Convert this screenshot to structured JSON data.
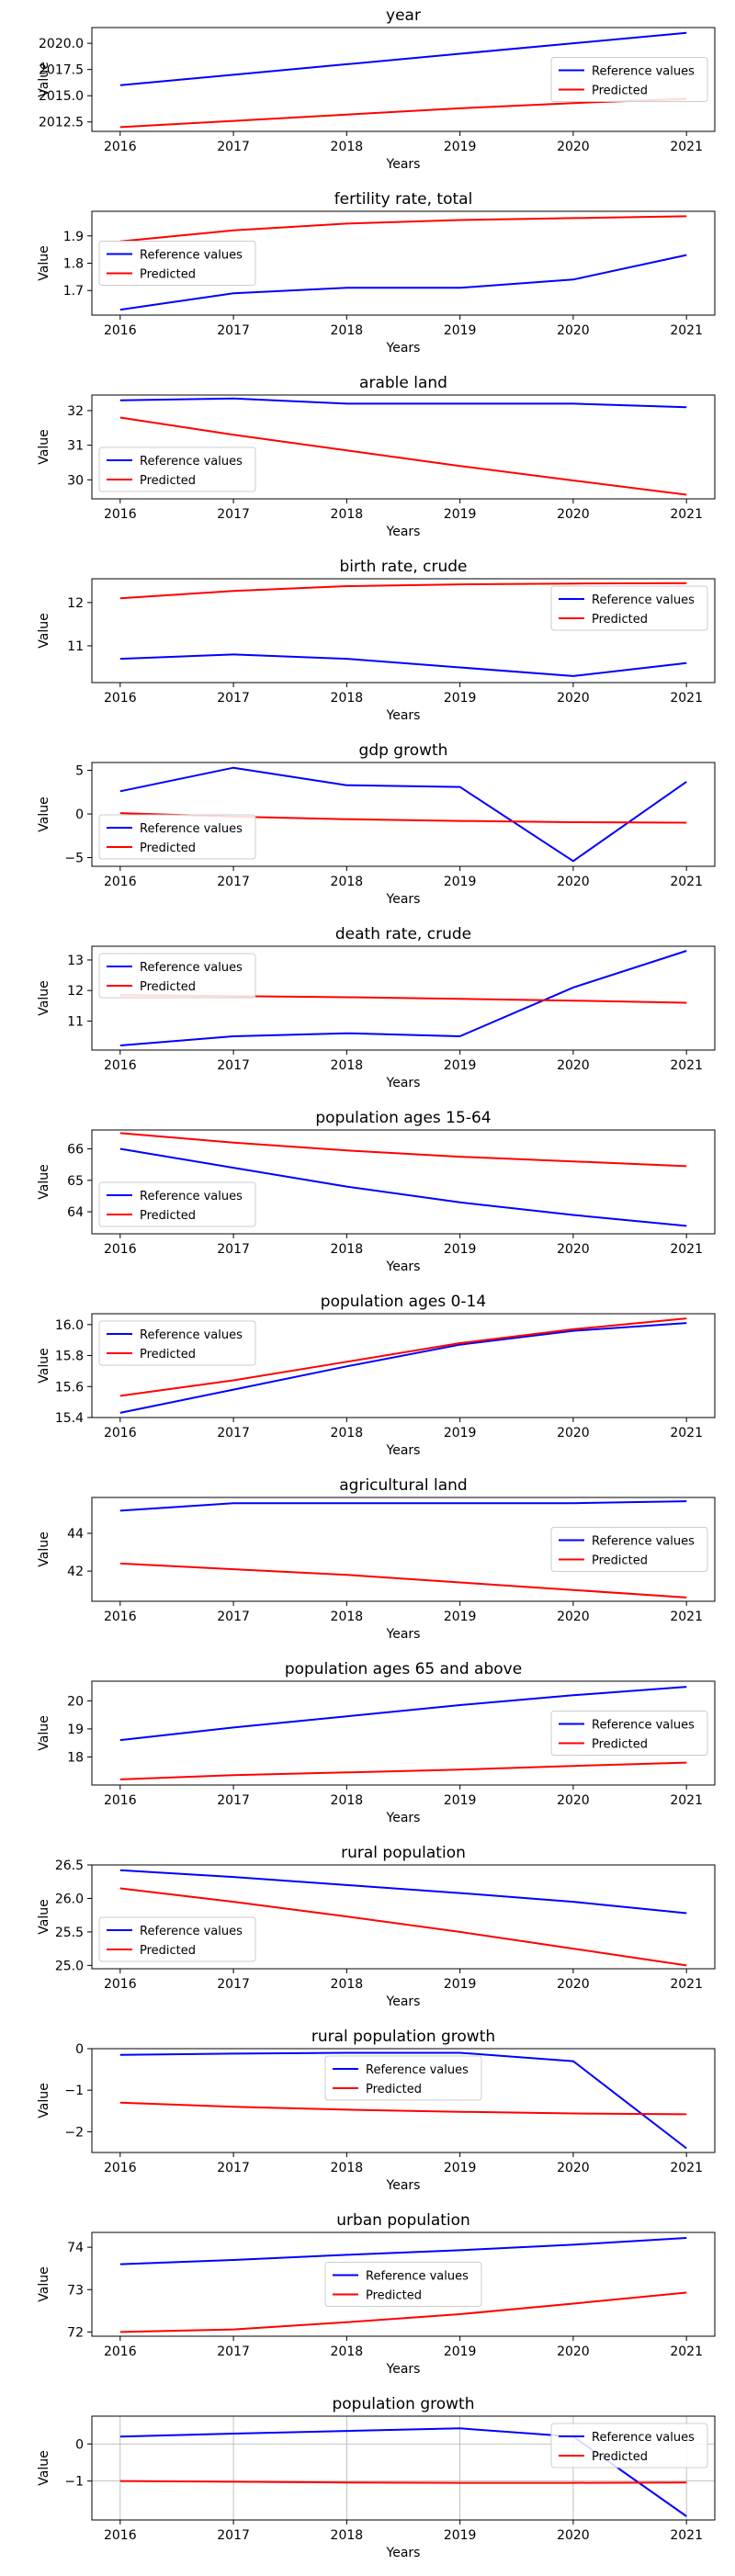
{
  "chart_data": [
    {
      "type": "line",
      "title": "year",
      "xlabel": "Years",
      "ylabel": "Value",
      "x": [
        2016,
        2017,
        2018,
        2019,
        2020,
        2021
      ],
      "xticks": [
        "2016",
        "2017",
        "2018",
        "2019",
        "2020",
        "2021"
      ],
      "ylim": [
        2011.6,
        2021.5
      ],
      "yticks": [
        2012.5,
        2015.0,
        2017.5,
        2020.0
      ],
      "ytick_labels": [
        "2012.5",
        "2015.0",
        "2017.5",
        "2020.0"
      ],
      "legend": "center-right",
      "grid": false,
      "series": [
        {
          "name": "Reference values",
          "color": "#0000ff",
          "values": [
            2016,
            2017,
            2018,
            2019,
            2020,
            2021
          ]
        },
        {
          "name": "Predicted",
          "color": "#ff0000",
          "values": [
            2012.0,
            2012.6,
            2013.2,
            2013.8,
            2014.3,
            2014.7
          ]
        }
      ]
    },
    {
      "type": "line",
      "title": "fertility rate, total",
      "xlabel": "Years",
      "ylabel": "Value",
      "x": [
        2016,
        2017,
        2018,
        2019,
        2020,
        2021
      ],
      "xticks": [
        "2016",
        "2017",
        "2018",
        "2019",
        "2020",
        "2021"
      ],
      "ylim": [
        1.61,
        1.99
      ],
      "yticks": [
        1.7,
        1.8,
        1.9
      ],
      "ytick_labels": [
        "1.7",
        "1.8",
        "1.9"
      ],
      "legend": "center-left",
      "grid": false,
      "series": [
        {
          "name": "Reference values",
          "color": "#0000ff",
          "values": [
            1.63,
            1.69,
            1.71,
            1.71,
            1.74,
            1.83
          ]
        },
        {
          "name": "Predicted",
          "color": "#ff0000",
          "values": [
            1.88,
            1.92,
            1.945,
            1.958,
            1.965,
            1.972
          ]
        }
      ]
    },
    {
      "type": "line",
      "title": "arable land",
      "xlabel": "Years",
      "ylabel": "Value",
      "x": [
        2016,
        2017,
        2018,
        2019,
        2020,
        2021
      ],
      "xticks": [
        "2016",
        "2017",
        "2018",
        "2019",
        "2020",
        "2021"
      ],
      "ylim": [
        29.45,
        32.45
      ],
      "yticks": [
        30,
        31,
        32
      ],
      "ytick_labels": [
        "30",
        "31",
        "32"
      ],
      "legend": "lower-left",
      "grid": false,
      "series": [
        {
          "name": "Reference values",
          "color": "#0000ff",
          "values": [
            32.3,
            32.35,
            32.2,
            32.2,
            32.2,
            32.1
          ]
        },
        {
          "name": "Predicted",
          "color": "#ff0000",
          "values": [
            31.8,
            31.3,
            30.85,
            30.4,
            29.98,
            29.57
          ]
        }
      ]
    },
    {
      "type": "line",
      "title": "birth rate, crude",
      "xlabel": "Years",
      "ylabel": "Value",
      "x": [
        2016,
        2017,
        2018,
        2019,
        2020,
        2021
      ],
      "xticks": [
        "2016",
        "2017",
        "2018",
        "2019",
        "2020",
        "2021"
      ],
      "ylim": [
        10.15,
        12.55
      ],
      "yticks": [
        11,
        12
      ],
      "ytick_labels": [
        "11",
        "12"
      ],
      "legend": "upper-right",
      "grid": false,
      "series": [
        {
          "name": "Reference values",
          "color": "#0000ff",
          "values": [
            10.7,
            10.8,
            10.7,
            10.5,
            10.3,
            10.6
          ]
        },
        {
          "name": "Predicted",
          "color": "#ff0000",
          "values": [
            12.1,
            12.27,
            12.38,
            12.42,
            12.44,
            12.45
          ]
        }
      ]
    },
    {
      "type": "line",
      "title": "gdp growth",
      "xlabel": "Years",
      "ylabel": "Value",
      "x": [
        2016,
        2017,
        2018,
        2019,
        2020,
        2021
      ],
      "xticks": [
        "2016",
        "2017",
        "2018",
        "2019",
        "2020",
        "2021"
      ],
      "ylim": [
        -6.0,
        5.9
      ],
      "yticks": [
        -5,
        0,
        5
      ],
      "ytick_labels": [
        "−5",
        "0",
        "5"
      ],
      "legend": "lower-left",
      "grid": false,
      "series": [
        {
          "name": "Reference values",
          "color": "#0000ff",
          "values": [
            2.6,
            5.3,
            3.3,
            3.1,
            -5.4,
            3.7
          ]
        },
        {
          "name": "Predicted",
          "color": "#ff0000",
          "values": [
            0.1,
            -0.3,
            -0.6,
            -0.8,
            -0.95,
            -1.0
          ]
        }
      ]
    },
    {
      "type": "line",
      "title": "death rate, crude",
      "xlabel": "Years",
      "ylabel": "Value",
      "x": [
        2016,
        2017,
        2018,
        2019,
        2020,
        2021
      ],
      "xticks": [
        "2016",
        "2017",
        "2018",
        "2019",
        "2020",
        "2021"
      ],
      "ylim": [
        10.05,
        13.45
      ],
      "yticks": [
        11,
        12,
        13
      ],
      "ytick_labels": [
        "11",
        "12",
        "13"
      ],
      "legend": "upper-left",
      "grid": false,
      "series": [
        {
          "name": "Reference values",
          "color": "#0000ff",
          "values": [
            10.2,
            10.5,
            10.6,
            10.5,
            12.1,
            13.3
          ]
        },
        {
          "name": "Predicted",
          "color": "#ff0000",
          "values": [
            11.85,
            11.82,
            11.78,
            11.73,
            11.67,
            11.6
          ]
        }
      ]
    },
    {
      "type": "line",
      "title": "population ages 15-64",
      "xlabel": "Years",
      "ylabel": "Value",
      "x": [
        2016,
        2017,
        2018,
        2019,
        2020,
        2021
      ],
      "xticks": [
        "2016",
        "2017",
        "2018",
        "2019",
        "2020",
        "2021"
      ],
      "ylim": [
        63.3,
        66.6
      ],
      "yticks": [
        64,
        65,
        66
      ],
      "ytick_labels": [
        "64",
        "65",
        "66"
      ],
      "legend": "lower-left",
      "grid": false,
      "series": [
        {
          "name": "Reference values",
          "color": "#0000ff",
          "values": [
            66.0,
            65.4,
            64.8,
            64.3,
            63.9,
            63.55
          ]
        },
        {
          "name": "Predicted",
          "color": "#ff0000",
          "values": [
            66.5,
            66.2,
            65.95,
            65.75,
            65.6,
            65.45
          ]
        }
      ]
    },
    {
      "type": "line",
      "title": "population ages 0-14",
      "xlabel": "Years",
      "ylabel": "Value",
      "x": [
        2016,
        2017,
        2018,
        2019,
        2020,
        2021
      ],
      "xticks": [
        "2016",
        "2017",
        "2018",
        "2019",
        "2020",
        "2021"
      ],
      "ylim": [
        15.4,
        16.07
      ],
      "yticks": [
        15.4,
        15.6,
        15.8,
        16.0
      ],
      "ytick_labels": [
        "15.4",
        "15.6",
        "15.8",
        "16.0"
      ],
      "legend": "upper-left",
      "grid": false,
      "series": [
        {
          "name": "Reference values",
          "color": "#0000ff",
          "values": [
            15.43,
            15.58,
            15.73,
            15.87,
            15.96,
            16.01
          ]
        },
        {
          "name": "Predicted",
          "color": "#ff0000",
          "values": [
            15.54,
            15.64,
            15.76,
            15.88,
            15.97,
            16.04
          ]
        }
      ]
    },
    {
      "type": "line",
      "title": "agricultural land",
      "xlabel": "Years",
      "ylabel": "Value",
      "x": [
        2016,
        2017,
        2018,
        2019,
        2020,
        2021
      ],
      "xticks": [
        "2016",
        "2017",
        "2018",
        "2019",
        "2020",
        "2021"
      ],
      "ylim": [
        40.4,
        45.9
      ],
      "yticks": [
        42,
        44
      ],
      "ytick_labels": [
        "42",
        "44"
      ],
      "legend": "center-right",
      "grid": false,
      "series": [
        {
          "name": "Reference values",
          "color": "#0000ff",
          "values": [
            45.2,
            45.6,
            45.6,
            45.6,
            45.6,
            45.7
          ]
        },
        {
          "name": "Predicted",
          "color": "#ff0000",
          "values": [
            42.4,
            42.1,
            41.8,
            41.4,
            41.0,
            40.6
          ]
        }
      ]
    },
    {
      "type": "line",
      "title": "population ages 65 and above",
      "xlabel": "Years",
      "ylabel": "Value",
      "x": [
        2016,
        2017,
        2018,
        2019,
        2020,
        2021
      ],
      "xticks": [
        "2016",
        "2017",
        "2018",
        "2019",
        "2020",
        "2021"
      ],
      "ylim": [
        17.0,
        20.7
      ],
      "yticks": [
        18,
        19,
        20
      ],
      "ytick_labels": [
        "18",
        "19",
        "20"
      ],
      "legend": "center-right",
      "grid": false,
      "series": [
        {
          "name": "Reference values",
          "color": "#0000ff",
          "values": [
            18.6,
            19.05,
            19.45,
            19.85,
            20.2,
            20.5
          ]
        },
        {
          "name": "Predicted",
          "color": "#ff0000",
          "values": [
            17.2,
            17.35,
            17.45,
            17.55,
            17.68,
            17.8
          ]
        }
      ]
    },
    {
      "type": "line",
      "title": "rural population",
      "xlabel": "Years",
      "ylabel": "Value",
      "x": [
        2016,
        2017,
        2018,
        2019,
        2020,
        2021
      ],
      "xticks": [
        "2016",
        "2017",
        "2018",
        "2019",
        "2020",
        "2021"
      ],
      "ylim": [
        24.95,
        26.5
      ],
      "yticks": [
        25.0,
        25.5,
        26.0,
        26.5
      ],
      "ytick_labels": [
        "25.0",
        "25.5",
        "26.0",
        "26.5"
      ],
      "legend": "lower-left",
      "grid": false,
      "series": [
        {
          "name": "Reference values",
          "color": "#0000ff",
          "values": [
            26.42,
            26.32,
            26.2,
            26.08,
            25.95,
            25.78
          ]
        },
        {
          "name": "Predicted",
          "color": "#ff0000",
          "values": [
            26.15,
            25.95,
            25.73,
            25.5,
            25.25,
            25.0
          ]
        }
      ]
    },
    {
      "type": "line",
      "title": "rural population growth",
      "xlabel": "Years",
      "ylabel": "Value",
      "x": [
        2016,
        2017,
        2018,
        2019,
        2020,
        2021
      ],
      "xticks": [
        "2016",
        "2017",
        "2018",
        "2019",
        "2020",
        "2021"
      ],
      "ylim": [
        -2.5,
        0.0
      ],
      "yticks": [
        -2,
        -1,
        0
      ],
      "ytick_labels": [
        "−2",
        "−1",
        "0"
      ],
      "legend": "upper-center",
      "grid": false,
      "series": [
        {
          "name": "Reference values",
          "color": "#0000ff",
          "values": [
            -0.15,
            -0.12,
            -0.1,
            -0.1,
            -0.3,
            -2.4
          ]
        },
        {
          "name": "Predicted",
          "color": "#ff0000",
          "values": [
            -1.3,
            -1.4,
            -1.47,
            -1.52,
            -1.56,
            -1.58
          ]
        }
      ]
    },
    {
      "type": "line",
      "title": "urban population",
      "xlabel": "Years",
      "ylabel": "Value",
      "x": [
        2016,
        2017,
        2018,
        2019,
        2020,
        2021
      ],
      "xticks": [
        "2016",
        "2017",
        "2018",
        "2019",
        "2020",
        "2021"
      ],
      "ylim": [
        71.9,
        74.35
      ],
      "yticks": [
        72,
        73,
        74
      ],
      "ytick_labels": [
        "72",
        "73",
        "74"
      ],
      "legend": "center",
      "grid": false,
      "series": [
        {
          "name": "Reference values",
          "color": "#0000ff",
          "values": [
            73.6,
            73.7,
            73.82,
            73.93,
            74.06,
            74.22
          ]
        },
        {
          "name": "Predicted",
          "color": "#ff0000",
          "values": [
            72.0,
            72.06,
            72.23,
            72.42,
            72.67,
            72.93
          ]
        }
      ]
    },
    {
      "type": "line",
      "title": "population growth",
      "xlabel": "Years",
      "ylabel": "Value",
      "x": [
        2016,
        2017,
        2018,
        2019,
        2020,
        2021
      ],
      "xticks": [
        "2016",
        "2017",
        "2018",
        "2019",
        "2020",
        "2021"
      ],
      "ylim": [
        -2.05,
        0.75
      ],
      "yticks": [
        -1,
        0
      ],
      "ytick_labels": [
        "−1",
        "0"
      ],
      "legend": "upper-right",
      "grid": true,
      "series": [
        {
          "name": "Reference values",
          "color": "#0000ff",
          "values": [
            0.2,
            0.28,
            0.35,
            0.42,
            0.2,
            -1.95
          ]
        },
        {
          "name": "Predicted",
          "color": "#ff0000",
          "values": [
            -1.0,
            -1.02,
            -1.04,
            -1.05,
            -1.05,
            -1.04
          ]
        }
      ]
    }
  ]
}
